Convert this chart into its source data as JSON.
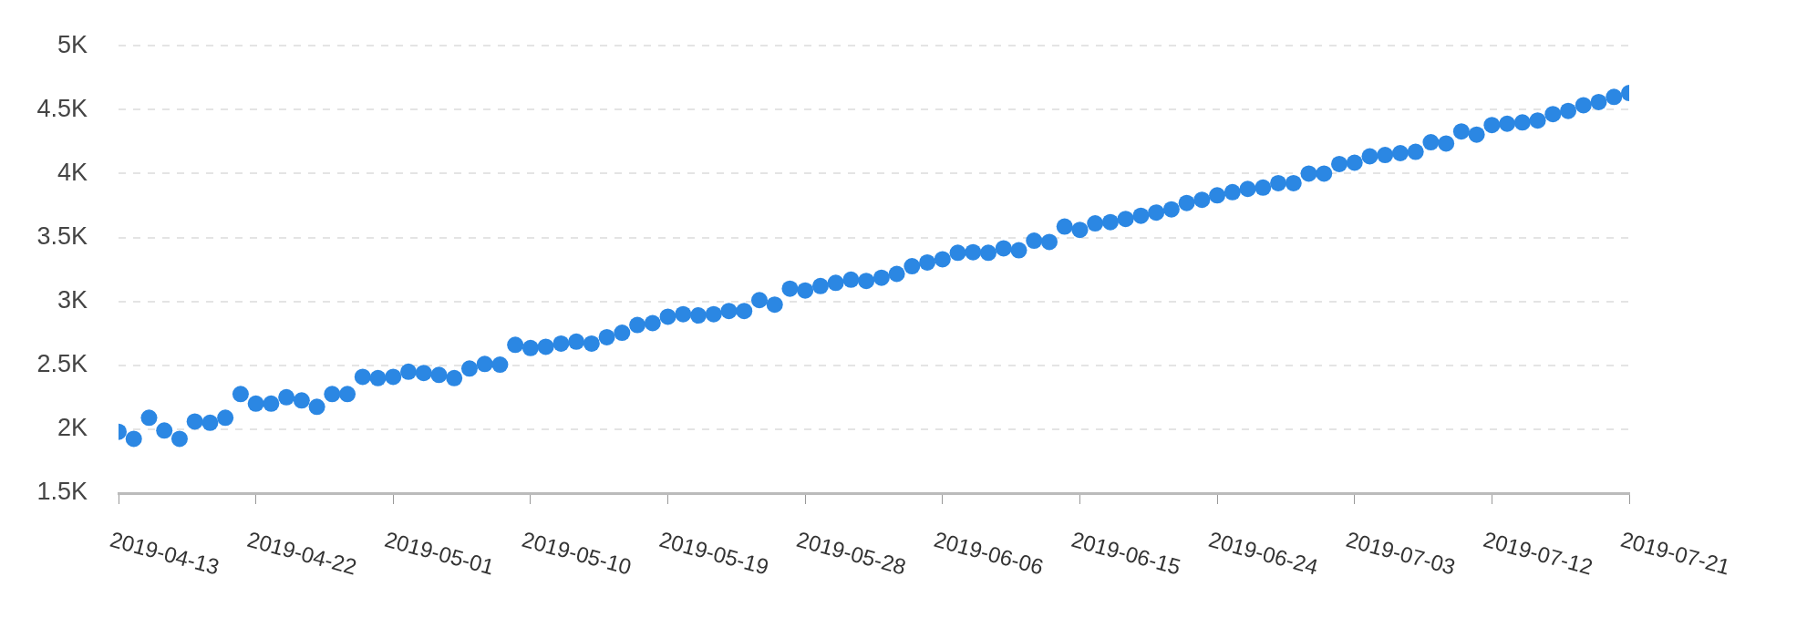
{
  "chart_data": {
    "type": "scatter",
    "marker": "circle",
    "grid": "y",
    "x": [
      "2019-04-13",
      "2019-04-14",
      "2019-04-15",
      "2019-04-16",
      "2019-04-17",
      "2019-04-18",
      "2019-04-19",
      "2019-04-20",
      "2019-04-21",
      "2019-04-22",
      "2019-04-23",
      "2019-04-24",
      "2019-04-25",
      "2019-04-26",
      "2019-04-27",
      "2019-04-28",
      "2019-04-29",
      "2019-04-30",
      "2019-05-01",
      "2019-05-02",
      "2019-05-03",
      "2019-05-04",
      "2019-05-05",
      "2019-05-06",
      "2019-05-07",
      "2019-05-08",
      "2019-05-09",
      "2019-05-10",
      "2019-05-11",
      "2019-05-12",
      "2019-05-13",
      "2019-05-14",
      "2019-05-15",
      "2019-05-16",
      "2019-05-17",
      "2019-05-18",
      "2019-05-19",
      "2019-05-20",
      "2019-05-21",
      "2019-05-22",
      "2019-05-23",
      "2019-05-24",
      "2019-05-25",
      "2019-05-26",
      "2019-05-27",
      "2019-05-28",
      "2019-05-29",
      "2019-05-30",
      "2019-05-31",
      "2019-06-01",
      "2019-06-02",
      "2019-06-03",
      "2019-06-04",
      "2019-06-05",
      "2019-06-06",
      "2019-06-07",
      "2019-06-08",
      "2019-06-09",
      "2019-06-10",
      "2019-06-11",
      "2019-06-12",
      "2019-06-13",
      "2019-06-14",
      "2019-06-15",
      "2019-06-16",
      "2019-06-17",
      "2019-06-18",
      "2019-06-19",
      "2019-06-20",
      "2019-06-21",
      "2019-06-22",
      "2019-06-23",
      "2019-06-24",
      "2019-06-25",
      "2019-06-26",
      "2019-06-27",
      "2019-06-28",
      "2019-06-29",
      "2019-06-30",
      "2019-07-01",
      "2019-07-02",
      "2019-07-03",
      "2019-07-04",
      "2019-07-05",
      "2019-07-06",
      "2019-07-07",
      "2019-07-08",
      "2019-07-09",
      "2019-07-10",
      "2019-07-11",
      "2019-07-12",
      "2019-07-13",
      "2019-07-14",
      "2019-07-15",
      "2019-07-16",
      "2019-07-17",
      "2019-07-18",
      "2019-07-19",
      "2019-07-20",
      "2019-07-21"
    ],
    "series": [
      {
        "color": "#2b87e3",
        "values": [
          1980,
          1925,
          2090,
          1990,
          1925,
          2060,
          2050,
          2090,
          2275,
          2200,
          2200,
          2250,
          2225,
          2175,
          2275,
          2275,
          2410,
          2400,
          2410,
          2450,
          2440,
          2425,
          2400,
          2475,
          2510,
          2505,
          2660,
          2635,
          2645,
          2670,
          2685,
          2670,
          2720,
          2755,
          2815,
          2830,
          2880,
          2900,
          2890,
          2900,
          2925,
          2925,
          3010,
          2975,
          3100,
          3085,
          3120,
          3145,
          3170,
          3160,
          3185,
          3215,
          3275,
          3305,
          3330,
          3380,
          3385,
          3380,
          3415,
          3400,
          3475,
          3465,
          3585,
          3560,
          3610,
          3620,
          3645,
          3670,
          3695,
          3720,
          3770,
          3795,
          3830,
          3855,
          3880,
          3890,
          3925,
          3925,
          4000,
          4000,
          4075,
          4085,
          4135,
          4145,
          4160,
          4170,
          4245,
          4235,
          4330,
          4305,
          4380,
          4390,
          4400,
          4415,
          4465,
          4490,
          4535,
          4560,
          4600,
          4630
        ]
      }
    ],
    "xlim": [
      "2019-04-13",
      "2019-07-21"
    ],
    "xticks": [
      "2019-04-13",
      "2019-04-22",
      "2019-05-01",
      "2019-05-10",
      "2019-05-19",
      "2019-05-28",
      "2019-06-06",
      "2019-06-15",
      "2019-06-24",
      "2019-07-03",
      "2019-07-12",
      "2019-07-21"
    ],
    "ylim": [
      1500,
      5000
    ],
    "yticks": [
      {
        "value": 1500,
        "label": "1.5K"
      },
      {
        "value": 2000,
        "label": "2K"
      },
      {
        "value": 2500,
        "label": "2.5K"
      },
      {
        "value": 3000,
        "label": "3K"
      },
      {
        "value": 3500,
        "label": "3.5K"
      },
      {
        "value": 4000,
        "label": "4K"
      },
      {
        "value": 4500,
        "label": "4.5K"
      },
      {
        "value": 5000,
        "label": "5K"
      }
    ]
  }
}
